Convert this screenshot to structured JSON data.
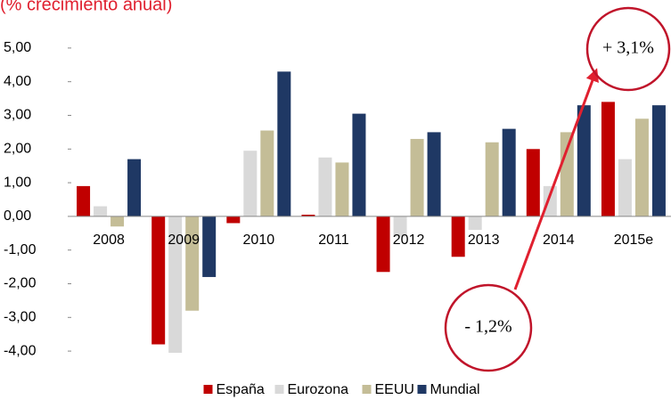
{
  "chart_data": {
    "type": "bar",
    "title": "(% crecimiento anual)",
    "categories": [
      "2008",
      "2009",
      "2010",
      "2011",
      "2012",
      "2013",
      "2014",
      "2015e"
    ],
    "series": [
      {
        "name": "España",
        "color": "#c00000",
        "values": [
          0.9,
          -3.8,
          -0.2,
          0.05,
          -1.65,
          -1.2,
          2.0,
          3.4
        ]
      },
      {
        "name": "Eurozona",
        "color": "#d9d9d9",
        "values": [
          0.3,
          -4.05,
          1.95,
          1.75,
          -0.6,
          -0.4,
          0.9,
          1.7
        ]
      },
      {
        "name": "EEUU",
        "color": "#c4bd97",
        "values": [
          -0.3,
          -2.8,
          2.55,
          1.6,
          2.3,
          2.2,
          2.5,
          2.9
        ]
      },
      {
        "name": "Mundial",
        "color": "#1f3864",
        "values": [
          1.7,
          -1.8,
          4.3,
          3.05,
          2.5,
          2.6,
          3.3,
          3.3
        ]
      }
    ],
    "ylim": [
      -4.5,
      5.5
    ],
    "yticks": [
      {
        "value": -4,
        "label": "-4,00"
      },
      {
        "value": -3,
        "label": "-3,00"
      },
      {
        "value": -2,
        "label": "-2,00"
      },
      {
        "value": -1,
        "label": "-1,00"
      },
      {
        "value": 0,
        "label": "0,00"
      },
      {
        "value": 1,
        "label": "1,00"
      },
      {
        "value": 2,
        "label": "2,00"
      },
      {
        "value": 3,
        "label": "3,00"
      },
      {
        "value": 4,
        "label": "4,00"
      },
      {
        "value": 5,
        "label": "5,00"
      }
    ],
    "annotations": [
      "+ 3,1%",
      "- 1,2%"
    ]
  }
}
